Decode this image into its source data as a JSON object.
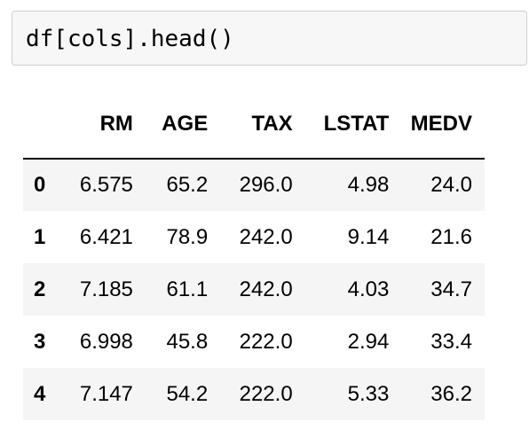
{
  "cell": {
    "code": "df[cols].head()"
  },
  "table": {
    "columns": [
      "RM",
      "AGE",
      "TAX",
      "LSTAT",
      "MEDV"
    ],
    "rows": [
      {
        "index": "0",
        "RM": "6.575",
        "AGE": "65.2",
        "TAX": "296.0",
        "LSTAT": "4.98",
        "MEDV": "24.0"
      },
      {
        "index": "1",
        "RM": "6.421",
        "AGE": "78.9",
        "TAX": "242.0",
        "LSTAT": "9.14",
        "MEDV": "21.6"
      },
      {
        "index": "2",
        "RM": "7.185",
        "AGE": "61.1",
        "TAX": "242.0",
        "LSTAT": "4.03",
        "MEDV": "34.7"
      },
      {
        "index": "3",
        "RM": "6.998",
        "AGE": "45.8",
        "TAX": "222.0",
        "LSTAT": "2.94",
        "MEDV": "33.4"
      },
      {
        "index": "4",
        "RM": "7.147",
        "AGE": "54.2",
        "TAX": "222.0",
        "LSTAT": "5.33",
        "MEDV": "36.2"
      }
    ]
  }
}
